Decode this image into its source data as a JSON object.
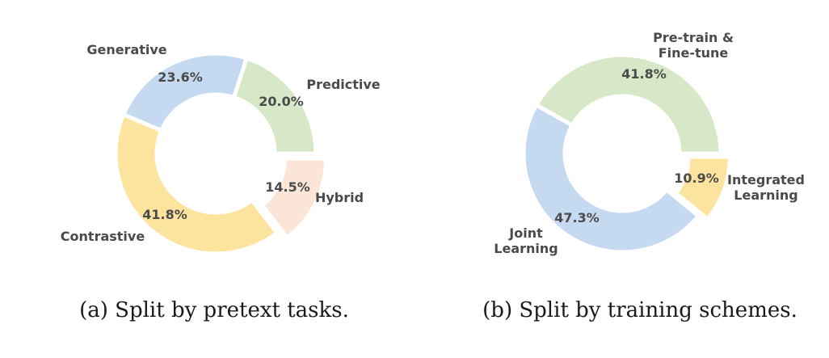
{
  "chart_data": [
    {
      "type": "pie",
      "caption": "(a) Split by pretext tasks.",
      "slices": [
        {
          "label": [
            "Predictive"
          ],
          "value": 20.0,
          "pct_text": "20.0%",
          "color": "#d7e8c9"
        },
        {
          "label": [
            "Generative"
          ],
          "value": 23.6,
          "pct_text": "23.6%",
          "color": "#c5daf0"
        },
        {
          "label": [
            "Contrastive"
          ],
          "value": 41.8,
          "pct_text": "41.8%",
          "color": "#fde49e"
        },
        {
          "label": [
            "Hybrid"
          ],
          "value": 14.5,
          "pct_text": "14.5%",
          "color": "#fae5d7"
        }
      ]
    },
    {
      "type": "pie",
      "caption": "(b) Split by training schemes.",
      "slices": [
        {
          "label": [
            "Pre-train &",
            "Fine-tune"
          ],
          "value": 41.8,
          "pct_text": "41.8%",
          "color": "#d7e8c9"
        },
        {
          "label": [
            "Joint",
            "Learning"
          ],
          "value": 47.3,
          "pct_text": "47.3%",
          "color": "#c5daf0"
        },
        {
          "label": [
            "Integrated",
            "Learning"
          ],
          "value": 10.9,
          "pct_text": "10.9%",
          "color": "#fde49e"
        }
      ]
    }
  ]
}
